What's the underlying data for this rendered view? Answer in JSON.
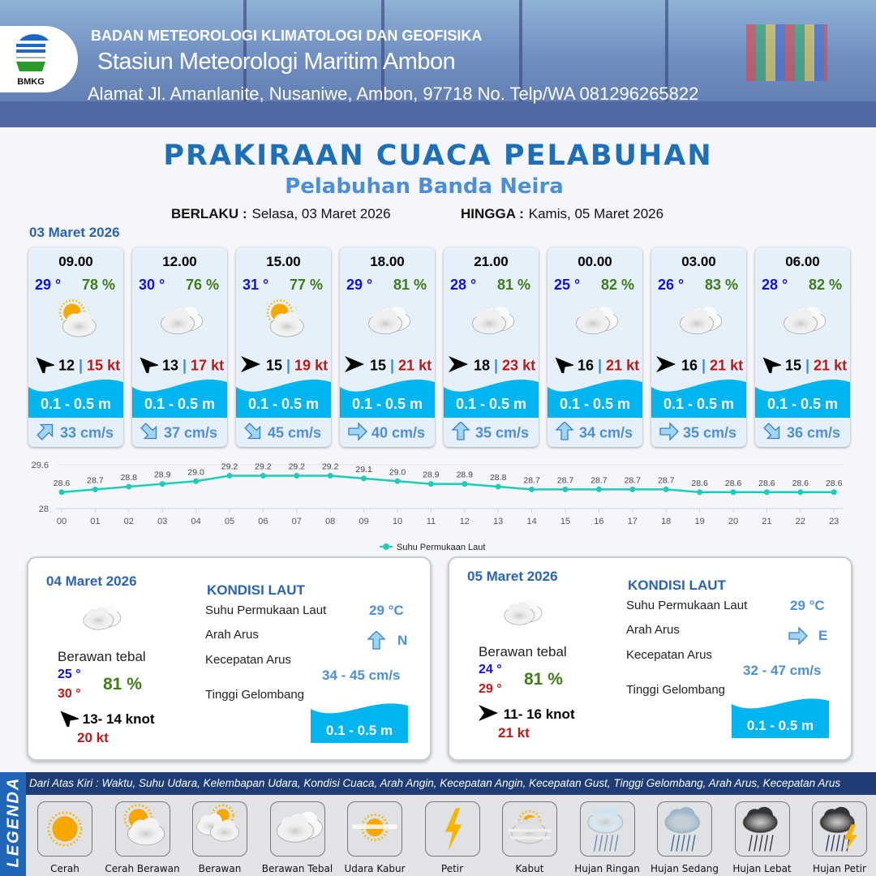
{
  "header": {
    "org": "BADAN METEOROLOGI KLIMATOLOGI DAN GEOFISIKA",
    "station": "Stasiun Meteorologi Maritim Ambon",
    "address": "Alamat Jl. Amanlanite, Nusaniwe, Ambon, 97718   No. Telp/WA  081296265822",
    "logo_text": "BMKG"
  },
  "title": "PRAKIRAAN CUACA PELABUHAN",
  "subtitle": "Pelabuhan Banda Neira",
  "validity": {
    "from_label": "BERLAKU :",
    "from": "Selasa, 03 Maret 2026",
    "to_label": "HINGGA :",
    "to": "Kamis, 05 Maret 2026"
  },
  "day1": {
    "date": "03 Maret 2026",
    "cards": [
      {
        "time": "09.00",
        "temp": "29 °",
        "hum": "78 %",
        "icon": "cerah-berawan",
        "wind_dir": "northeast",
        "wind_rot": -135,
        "wind": "12",
        "gust": "15 kt",
        "wave": "0.1 - 0.5 m",
        "cur_dir": "northeast",
        "cur_rot": -45,
        "cur": "33 cm/s"
      },
      {
        "time": "12.00",
        "temp": "30 °",
        "hum": "76 %",
        "icon": "berawan-tebal",
        "wind_dir": "northeast",
        "wind_rot": -135,
        "wind": "13",
        "gust": "17 kt",
        "wave": "0.1 - 0.5 m",
        "cur_dir": "southeast",
        "cur_rot": 45,
        "cur": "37 cm/s"
      },
      {
        "time": "15.00",
        "temp": "31 °",
        "hum": "77 %",
        "icon": "cerah-berawan",
        "wind_dir": "west",
        "wind_rot": 0,
        "wind": "15",
        "gust": "19 kt",
        "wave": "0.1 - 0.5 m",
        "cur_dir": "southeast",
        "cur_rot": 45,
        "cur": "45 cm/s"
      },
      {
        "time": "18.00",
        "temp": "29 °",
        "hum": "81 %",
        "icon": "berawan-tebal",
        "wind_dir": "west",
        "wind_rot": 0,
        "wind": "15",
        "gust": "21 kt",
        "wave": "0.1 - 0.5 m",
        "cur_dir": "east",
        "cur_rot": 0,
        "cur": "40 cm/s"
      },
      {
        "time": "21.00",
        "temp": "28 °",
        "hum": "81 %",
        "icon": "berawan-tebal",
        "wind_dir": "west",
        "wind_rot": 0,
        "wind": "18",
        "gust": "23 kt",
        "wave": "0.1 - 0.5 m",
        "cur_dir": "north",
        "cur_rot": -90,
        "cur": "35 cm/s"
      },
      {
        "time": "00.00",
        "temp": "25 °",
        "hum": "82 %",
        "icon": "berawan-tebal",
        "wind_dir": "northeast",
        "wind_rot": -135,
        "wind": "16",
        "gust": "21 kt",
        "wave": "0.1 - 0.5 m",
        "cur_dir": "north",
        "cur_rot": -90,
        "cur": "34 cm/s"
      },
      {
        "time": "03.00",
        "temp": "26 °",
        "hum": "83 %",
        "icon": "berawan-tebal",
        "wind_dir": "west",
        "wind_rot": 0,
        "wind": "16",
        "gust": "21 kt",
        "wave": "0.1 - 0.5 m",
        "cur_dir": "east",
        "cur_rot": 0,
        "cur": "35 cm/s"
      },
      {
        "time": "06.00",
        "temp": "28 °",
        "hum": "82 %",
        "icon": "berawan-tebal",
        "wind_dir": "northeast",
        "wind_rot": -135,
        "wind": "15",
        "gust": "21 kt",
        "wave": "0.1 - 0.5 m",
        "cur_dir": "southeast",
        "cur_rot": 45,
        "cur": "36 cm/s"
      }
    ]
  },
  "chart_data": {
    "type": "line",
    "x": [
      "00",
      "01",
      "02",
      "03",
      "04",
      "05",
      "06",
      "07",
      "08",
      "09",
      "10",
      "11",
      "12",
      "13",
      "14",
      "15",
      "16",
      "17",
      "18",
      "19",
      "20",
      "21",
      "22",
      "23"
    ],
    "series": [
      {
        "name": "Suhu Permukaan Laut",
        "values": [
          28.6,
          28.7,
          28.8,
          28.9,
          29.0,
          29.2,
          29.2,
          29.2,
          29.2,
          29.1,
          29.0,
          28.9,
          28.9,
          28.8,
          28.7,
          28.7,
          28.7,
          28.7,
          28.7,
          28.6,
          28.6,
          28.6,
          28.6,
          28.6
        ]
      }
    ],
    "ylim": [
      28,
      29.6
    ],
    "yticks": [
      "28",
      "29.6"
    ],
    "color": "#22cbb8",
    "grid": true,
    "legend": "bottom"
  },
  "days": [
    {
      "date": "04 Maret 2026",
      "condition": "Berawan tebal",
      "tmin": "25 °",
      "tmax": "30 °",
      "hum": "81 %",
      "wind_dir": "northeast",
      "wind": "13- 14 knot",
      "gust": "20 kt",
      "sea_title": "KONDISI LAUT",
      "sst_label": "Suhu Permukaan Laut",
      "sst": "29 °C",
      "dir_label": "Arah Arus",
      "dir": "N",
      "speed_label": "Kecepatan Arus",
      "speed": "34 - 45 cm/s",
      "wave_label": "Tinggi Gelombang",
      "wave": "0.1 - 0.5 m"
    },
    {
      "date": "05 Maret 2026",
      "condition": "Berawan tebal",
      "tmin": "24 °",
      "tmax": "29 °",
      "hum": "81 %",
      "wind_dir": "west",
      "wind": "11- 16 knot",
      "gust": "21 kt",
      "sea_title": "KONDISI LAUT",
      "sst_label": "Suhu Permukaan Laut",
      "sst": "29 °C",
      "dir_label": "Arah Arus",
      "dir": "E",
      "speed_label": "Kecepatan Arus",
      "speed": "32 - 47 cm/s",
      "wave_label": "Tinggi Gelombang",
      "wave": "0.1 - 0.5 m"
    }
  ],
  "legend": {
    "title": "LEGENDA",
    "caption": "Dari Atas Kiri : Waktu, Suhu Udara, Kelembapan Udara, Kondisi Cuaca, Arah Angin, Kecepatan Angin, Kecepatan Gust, Tinggi Gelombang, Arah Arus, Kecepatan Arus",
    "items": [
      {
        "label": "Cerah",
        "icon": "cerah"
      },
      {
        "label": "Cerah Berawan",
        "icon": "cerah-berawan"
      },
      {
        "label": "Berawan",
        "icon": "berawan"
      },
      {
        "label": "Berawan Tebal",
        "icon": "berawan-tebal"
      },
      {
        "label": "Udara Kabur",
        "icon": "udara-kabur"
      },
      {
        "label": "Petir",
        "icon": "petir"
      },
      {
        "label": "Kabut",
        "icon": "kabut"
      },
      {
        "label": "Hujan Ringan",
        "icon": "hujan-ringan"
      },
      {
        "label": "Hujan Sedang",
        "icon": "hujan-sedang"
      },
      {
        "label": "Hujan Lebat",
        "icon": "hujan-lebat"
      },
      {
        "label": "Hujan Petir",
        "icon": "hujan-petir"
      }
    ]
  }
}
